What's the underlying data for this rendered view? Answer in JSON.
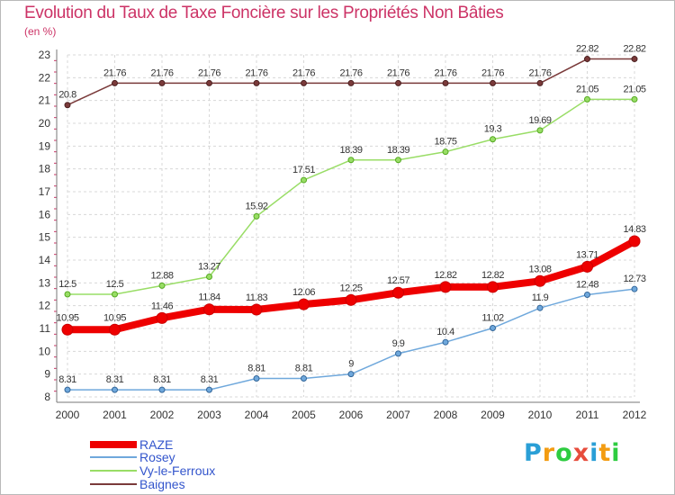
{
  "title": "Evolution du Taux de Taxe Foncière sur les Propriétés Non Bâties",
  "subtitle": "(en %)",
  "logo": {
    "letters": [
      "P",
      "r",
      "o",
      "x",
      "i",
      "t",
      "i"
    ],
    "colors": [
      "#2a9fd6",
      "#f39c12",
      "#2ecc40",
      "#e74c3c",
      "#2a9fd6",
      "#f39c12",
      "#2ecc40"
    ]
  },
  "chart_data": {
    "type": "line",
    "title": "Evolution du Taux de Taxe Foncière sur les Propriétés Non Bâties",
    "ylabel": "(en %)",
    "xlabel": "",
    "x": [
      "2000",
      "2001",
      "2002",
      "2003",
      "2004",
      "2005",
      "2006",
      "2007",
      "2008",
      "2009",
      "2010",
      "2011",
      "2012"
    ],
    "ylim": [
      8,
      23
    ],
    "yticks": [
      "8",
      "9",
      "10",
      "11",
      "12",
      "13",
      "14",
      "15",
      "16",
      "17",
      "18",
      "19",
      "20",
      "21",
      "22",
      "23"
    ],
    "grid": true,
    "legend_position": "bottom-left",
    "series": [
      {
        "name": "RAZE",
        "color": "#ee0000",
        "values": [
          10.95,
          10.95,
          11.46,
          11.84,
          11.83,
          12.06,
          12.25,
          12.57,
          12.82,
          12.82,
          13.08,
          13.71,
          14.83
        ],
        "labels": [
          "10.95",
          "10.95",
          "11.46",
          "11.84",
          "11.83",
          "12.06",
          "12.25",
          "12.57",
          "12.82",
          "12.82",
          "13.08",
          "13.71",
          "14.83"
        ]
      },
      {
        "name": "Rosey",
        "color": "#6fa8dc",
        "values": [
          8.31,
          8.31,
          8.31,
          8.31,
          8.81,
          8.81,
          9,
          9.9,
          10.4,
          11.02,
          11.9,
          12.48,
          12.73
        ],
        "labels": [
          "8.31",
          "8.31",
          "8.31",
          "8.31",
          "8.81",
          "8.81",
          "9",
          "9.9",
          "10.4",
          "11.02",
          "11.9",
          "12.48",
          "12.73"
        ]
      },
      {
        "name": "Vy-le-Ferroux",
        "color": "#99dd66",
        "values": [
          12.5,
          12.5,
          12.88,
          13.27,
          15.92,
          17.51,
          18.39,
          18.39,
          18.75,
          19.3,
          19.69,
          21.05,
          21.05
        ],
        "labels": [
          "12.5",
          "12.5",
          "12.88",
          "13.27",
          "15.92",
          "17.51",
          "18.39",
          "18.39",
          "18.75",
          "19.3",
          "19.69",
          "21.05",
          "21.05"
        ]
      },
      {
        "name": "Baignes",
        "color": "#7a3a3a",
        "values": [
          20.8,
          21.76,
          21.76,
          21.76,
          21.76,
          21.76,
          21.76,
          21.76,
          21.76,
          21.76,
          21.76,
          22.82,
          22.82
        ],
        "labels": [
          "20.8",
          "21.76",
          "21.76",
          "21.76",
          "21.76",
          "21.76",
          "21.76",
          "21.76",
          "21.76",
          "21.76",
          "21.76",
          "22.82",
          "22.82"
        ]
      }
    ]
  }
}
